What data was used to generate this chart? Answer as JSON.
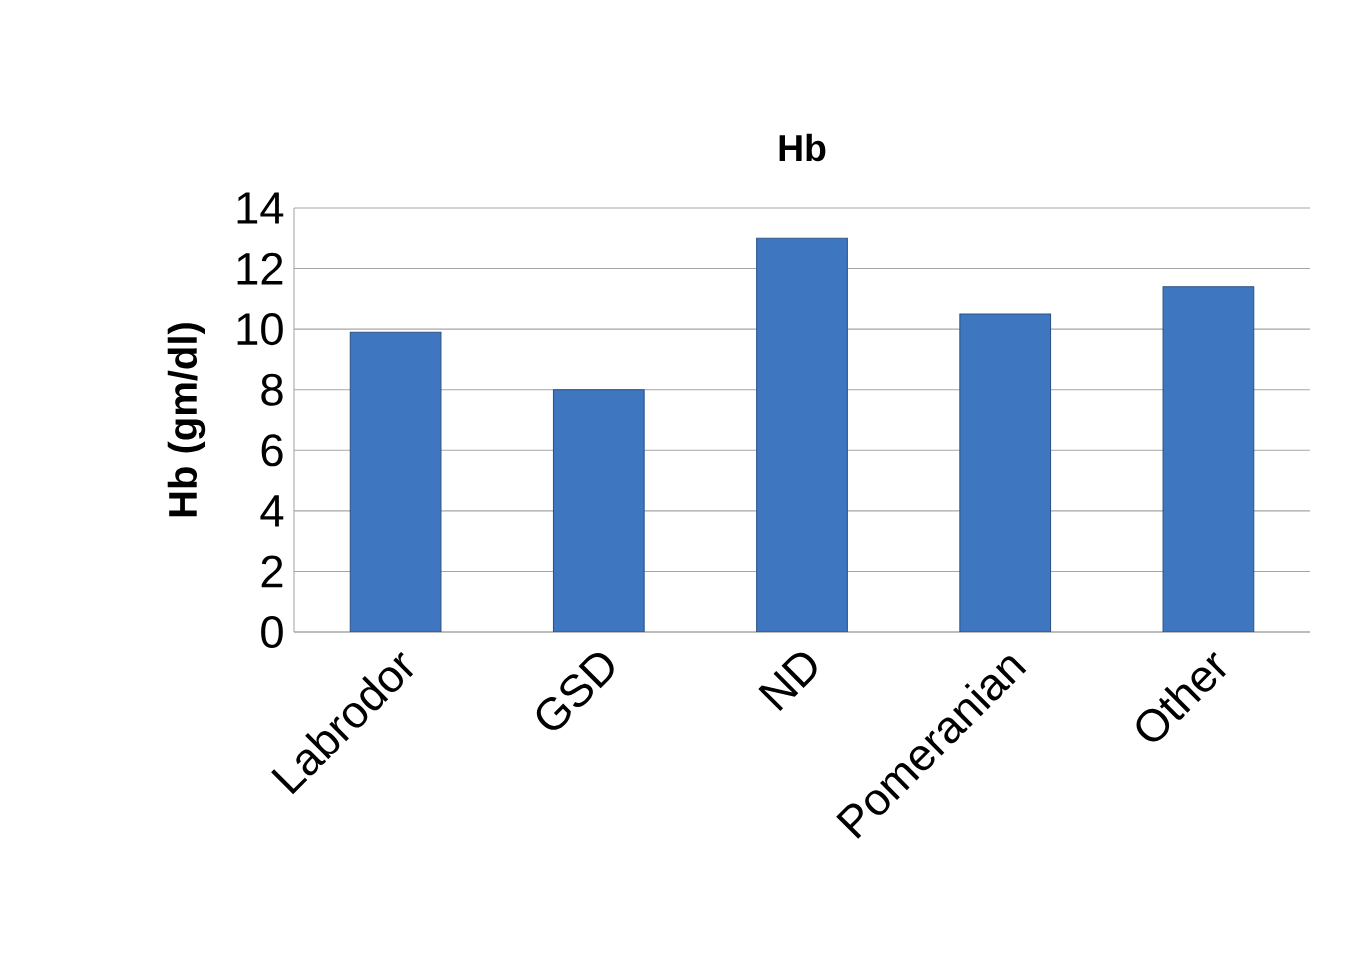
{
  "chart_data": {
    "type": "bar",
    "title": "Hb",
    "ylabel": "Hb (gm/dl)",
    "categories": [
      "Labrodor",
      "GSD",
      "ND",
      "Pomeranian",
      "Other"
    ],
    "values": [
      9.9,
      8.0,
      13.0,
      10.5,
      11.4
    ],
    "color": "#3f76c0",
    "ylim": [
      0,
      14
    ],
    "yticks": [
      0,
      2,
      4,
      6,
      8,
      10,
      12,
      14
    ],
    "grid": "y"
  }
}
